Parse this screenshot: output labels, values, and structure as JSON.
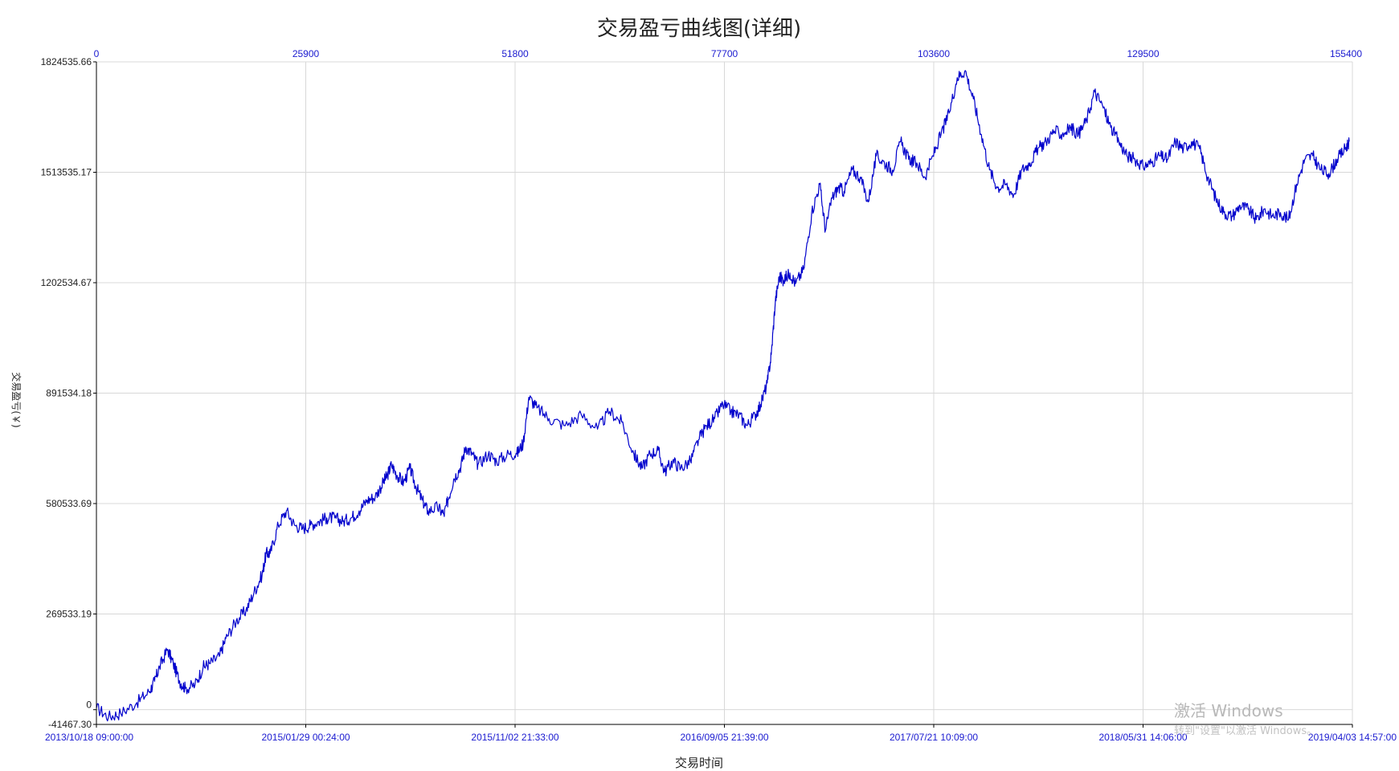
{
  "chart_data": {
    "type": "line",
    "title": "交易盈亏曲线图(详细)",
    "xlabel": "交易时间",
    "ylabel": "交易盈亏(￥)",
    "ylim": [
      -41467.3,
      1824535.66
    ],
    "yticks": [
      "1824535.66",
      "1513535.17",
      "1202534.67",
      "891534.18",
      "580533.69",
      "269533.19",
      "0",
      "-41467.30"
    ],
    "ytick_values": [
      1824535.66,
      1513535.17,
      1202534.67,
      891534.18,
      580533.69,
      269533.19,
      0,
      -41467.3
    ],
    "xlim": [
      0,
      155400
    ],
    "top_xticks": [
      "0",
      "25900",
      "51800",
      "77700",
      "103600",
      "129500",
      "155400"
    ],
    "top_xtick_values": [
      0,
      25900,
      51800,
      77700,
      103600,
      129500,
      155400
    ],
    "bottom_xticks": [
      "2013/10/18 09:00:00",
      "2015/01/29 00:24:00",
      "2015/11/02 21:33:00",
      "2016/09/05 21:39:00",
      "2017/07/21 10:09:00",
      "2018/05/31 14:06:00",
      "2019/04/03 14:57:00"
    ],
    "grid": true,
    "line_color": "#0000cc",
    "series": [
      {
        "x": [
          0,
          1500,
          3000,
          5000,
          6500,
          7200,
          7800,
          8800,
          9500,
          10300,
          11000,
          12200,
          13200,
          14000,
          15200,
          16000,
          17300,
          18500,
          19500,
          20500,
          21000,
          21500,
          22500,
          23500,
          24500,
          25500,
          26500,
          27500,
          28500,
          29500,
          30500,
          31500,
          32500,
          33500,
          34500,
          35500,
          36000,
          36500,
          37200,
          38000,
          38800,
          39500,
          40300,
          41000,
          42200,
          43000,
          43500,
          44200,
          45000,
          45700,
          46500,
          47200,
          48500,
          49500,
          51000,
          52000,
          52800,
          53500,
          54500,
          56000,
          58000,
          60000,
          62000,
          63500,
          65000,
          66500,
          67500,
          68500,
          69500,
          70300,
          71300,
          72300,
          73500,
          74500,
          75500,
          76500,
          77500,
          78500,
          79500,
          80500,
          81500,
          82200,
          83000,
          83500,
          84000,
          84500,
          85000,
          85800,
          86500,
          87500,
          88500,
          89500,
          90200,
          91000,
          91800,
          92500,
          93500,
          94500,
          95500,
          96500,
          97500,
          98500,
          99500,
          100500,
          101500,
          102500,
          103500,
          104500,
          105500,
          106500,
          107500,
          108500,
          109500,
          110500,
          111500,
          112500,
          113500,
          114500,
          115500,
          116500,
          117500,
          118500,
          119500,
          120500,
          121500,
          122500,
          123500,
          124500,
          125500,
          126500,
          127500,
          128500,
          129500,
          130500,
          131500,
          132500,
          133500,
          134500,
          135500,
          136500,
          137500,
          138500,
          139500,
          140500,
          141500,
          142500,
          143500,
          144500,
          145500,
          146500,
          147500,
          148500,
          149500,
          150500,
          151500,
          152500,
          153500,
          154500,
          155000
        ],
        "y": [
          5000,
          -20000,
          -10000,
          20000,
          50000,
          80000,
          120000,
          170000,
          130000,
          80000,
          60000,
          70000,
          120000,
          130000,
          150000,
          200000,
          250000,
          280000,
          330000,
          380000,
          440000,
          440000,
          520000,
          560000,
          520000,
          510000,
          520000,
          530000,
          540000,
          540000,
          530000,
          540000,
          560000,
          590000,
          600000,
          640000,
          660000,
          690000,
          660000,
          640000,
          680000,
          630000,
          590000,
          560000,
          570000,
          550000,
          590000,
          650000,
          680000,
          740000,
          720000,
          690000,
          720000,
          700000,
          720000,
          720000,
          750000,
          880000,
          850000,
          820000,
          800000,
          830000,
          790000,
          840000,
          810000,
          720000,
          680000,
          720000,
          730000,
          670000,
          700000,
          680000,
          700000,
          760000,
          800000,
          820000,
          860000,
          840000,
          830000,
          800000,
          830000,
          860000,
          920000,
          1000000,
          1150000,
          1220000,
          1210000,
          1230000,
          1200000,
          1240000,
          1400000,
          1480000,
          1350000,
          1440000,
          1470000,
          1460000,
          1520000,
          1500000,
          1430000,
          1560000,
          1540000,
          1520000,
          1600000,
          1550000,
          1540000,
          1500000,
          1560000,
          1620000,
          1680000,
          1780000,
          1800000,
          1720000,
          1620000,
          1520000,
          1470000,
          1480000,
          1450000,
          1520000,
          1540000,
          1580000,
          1600000,
          1630000,
          1620000,
          1640000,
          1620000,
          1660000,
          1740000,
          1700000,
          1640000,
          1600000,
          1560000,
          1550000,
          1530000,
          1540000,
          1560000,
          1550000,
          1600000,
          1580000,
          1600000,
          1580000,
          1500000,
          1440000,
          1400000,
          1390000,
          1420000,
          1410000,
          1380000,
          1410000,
          1390000,
          1400000,
          1380000,
          1480000,
          1550000,
          1560000,
          1520000,
          1510000,
          1550000,
          1580000,
          1600000
        ]
      }
    ]
  },
  "watermark": {
    "line1": "激活 Windows",
    "line2": "转到\"设置\"以激活 Windows。"
  }
}
